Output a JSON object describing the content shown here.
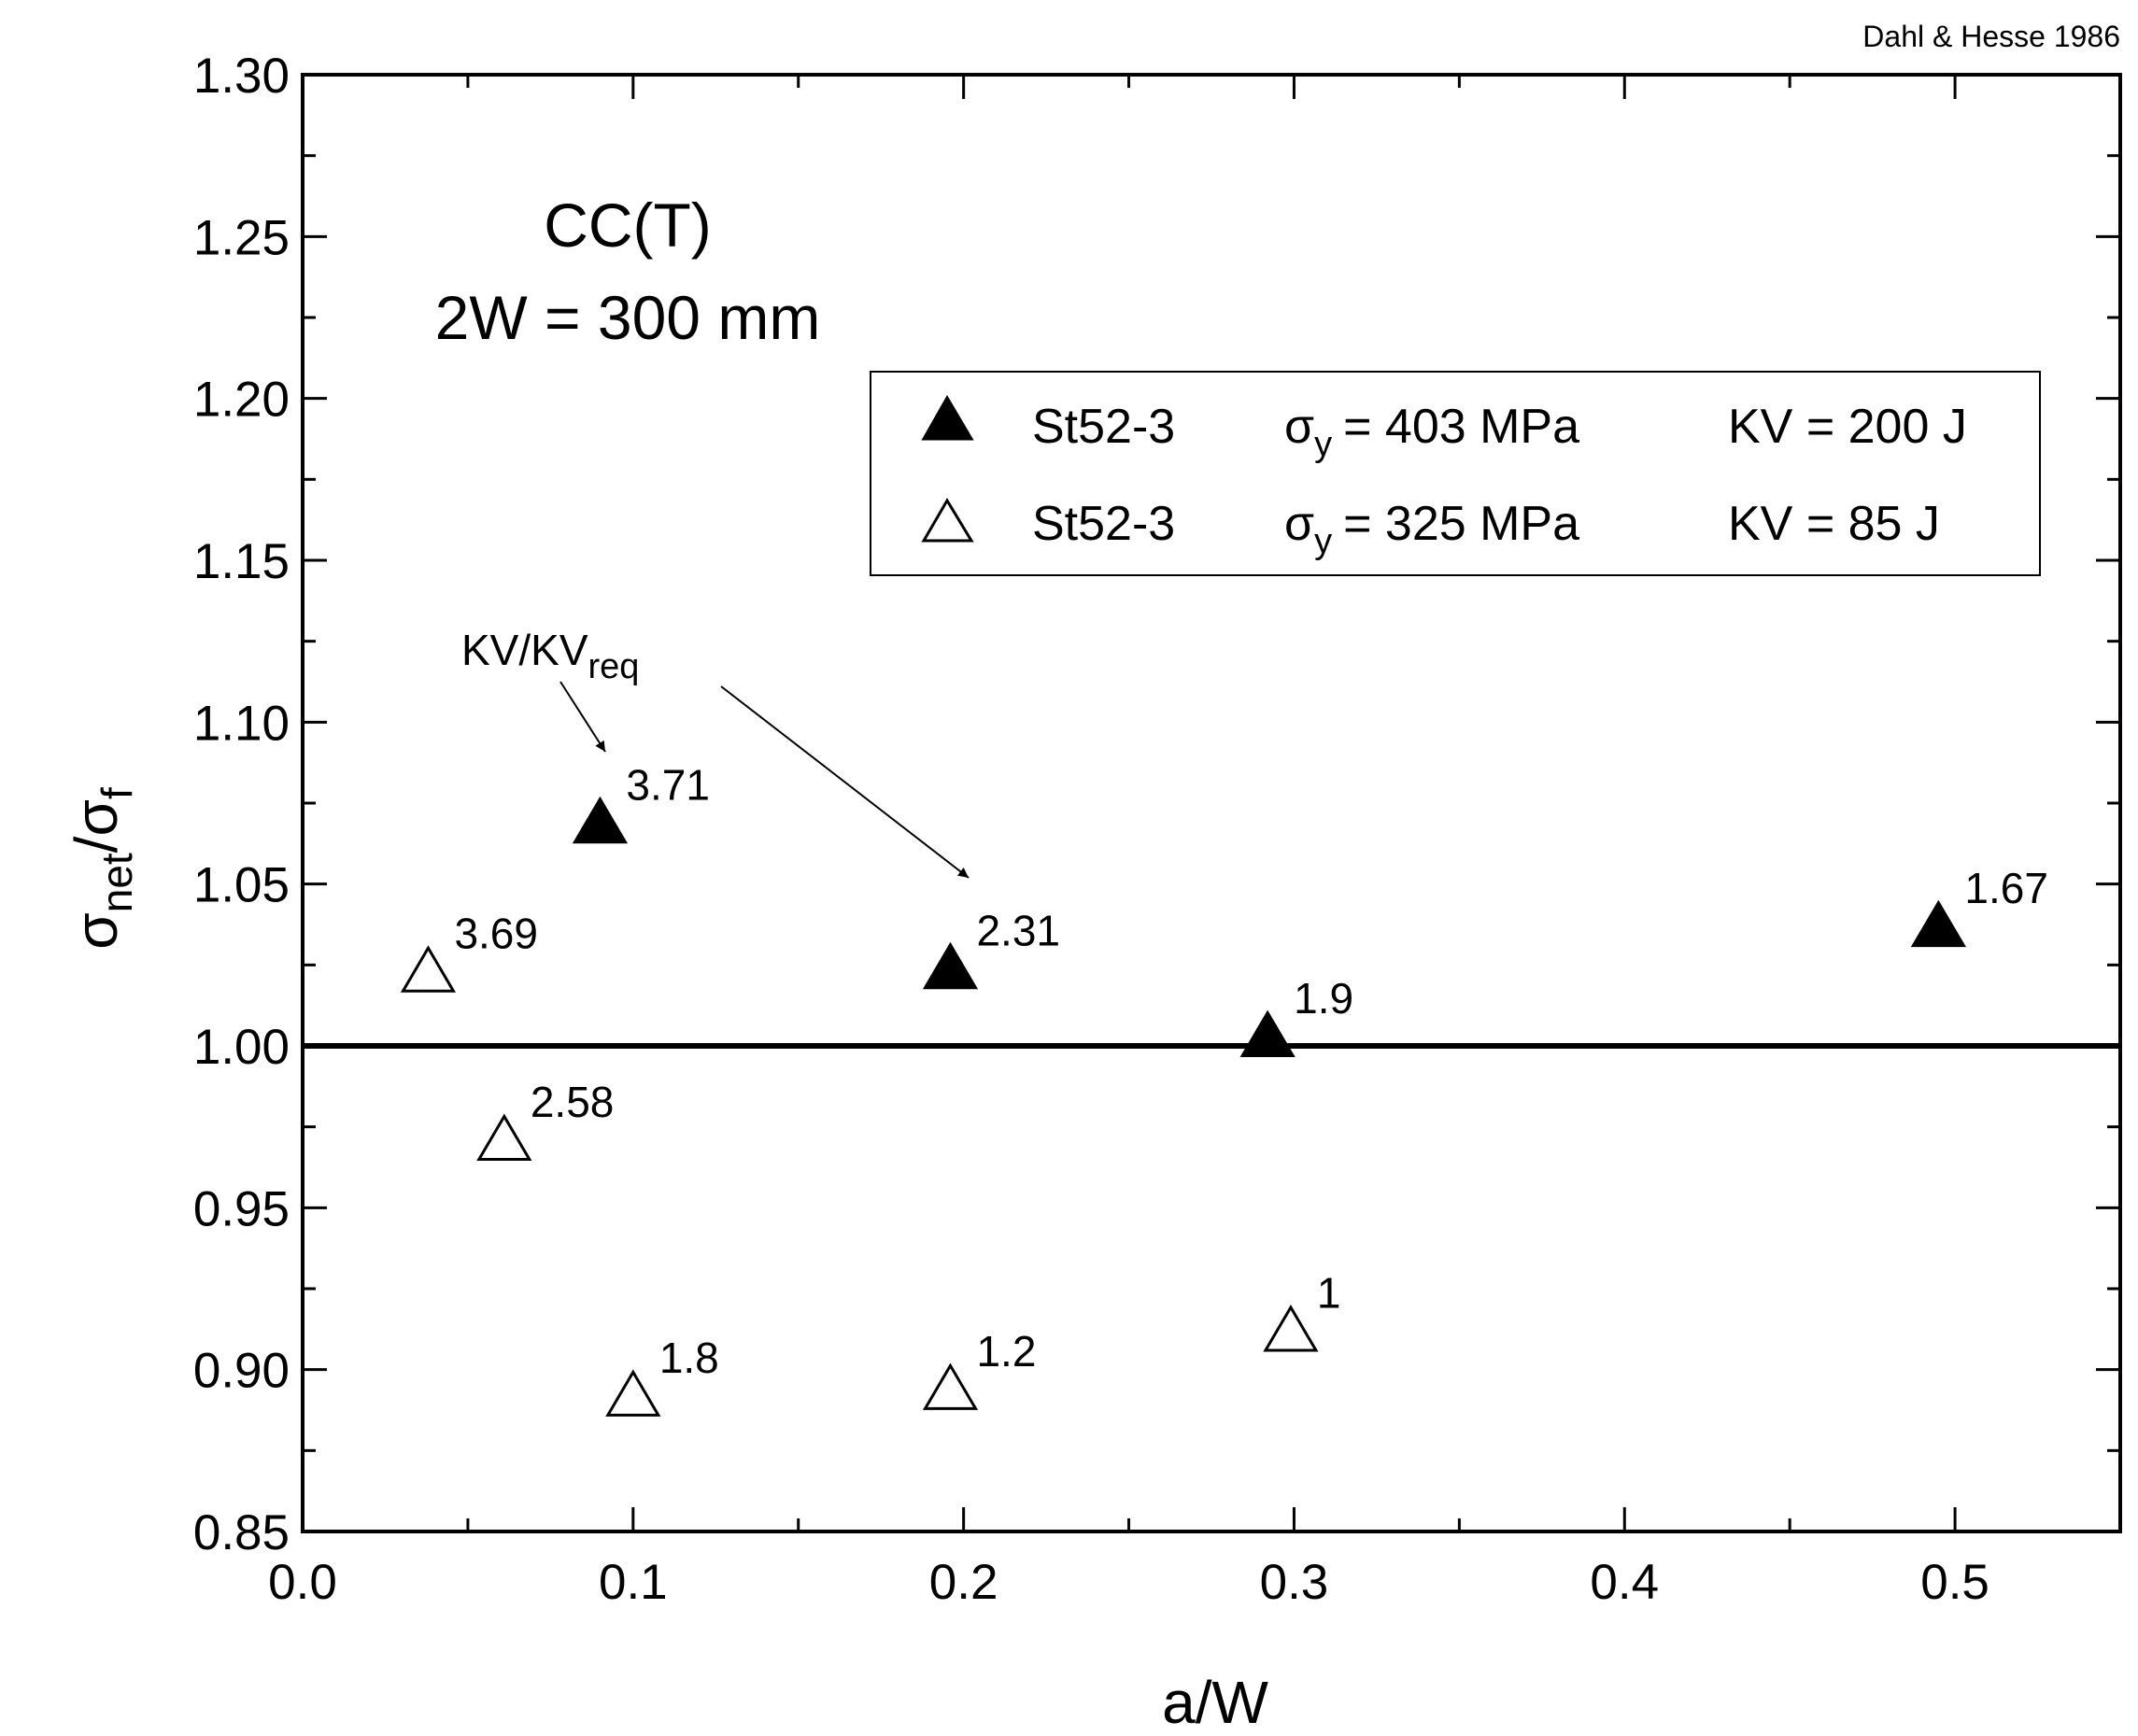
{
  "chart_data": {
    "type": "scatter",
    "credit": "Dahl & Hesse 1986",
    "xlabel": "a/W",
    "ylabel": {
      "main": "σ",
      "sub1": "net",
      "slash": "/σ",
      "sub2": "f"
    },
    "xlim": [
      0.0,
      0.55
    ],
    "ylim": [
      0.85,
      1.3
    ],
    "xticks": [
      0.0,
      0.1,
      0.2,
      0.3,
      0.4,
      0.5
    ],
    "xtick_labels": [
      "0.0",
      "0.1",
      "0.2",
      "0.3",
      "0.4",
      "0.5"
    ],
    "yticks": [
      0.85,
      0.9,
      0.95,
      1.0,
      1.05,
      1.1,
      1.15,
      1.2,
      1.25,
      1.3
    ],
    "ytick_labels": [
      "0.85",
      "0.90",
      "0.95",
      "1.00",
      "1.05",
      "1.10",
      "1.15",
      "1.20",
      "1.25",
      "1.30"
    ],
    "reference_line_y": 1.0,
    "specimen": {
      "line1": "CC(T)",
      "line2": "2W = 300 mm"
    },
    "series": [
      {
        "name": "St52-3 σy = 403 MPa KV = 200 J",
        "grade": "St52-3",
        "sigma_prefix": "σ",
        "sigma_sub": "y",
        "sigma_value": "= 403 MPa",
        "kv": "KV = 200 J",
        "marker": "filled-triangle",
        "color": "#000000",
        "points": [
          {
            "x": 0.09,
            "y": 1.068,
            "label": "3.71"
          },
          {
            "x": 0.196,
            "y": 1.023,
            "label": "2.31"
          },
          {
            "x": 0.292,
            "y": 1.002,
            "label": "1.9"
          },
          {
            "x": 0.495,
            "y": 1.036,
            "label": "1.67"
          }
        ]
      },
      {
        "name": "St52-3 σy = 325 MPa KV = 85 J",
        "grade": "St52-3",
        "sigma_prefix": "σ",
        "sigma_sub": "y",
        "sigma_value": "= 325 MPa",
        "kv": "KV = 85 J",
        "marker": "open-triangle",
        "color": "#000000",
        "points": [
          {
            "x": 0.038,
            "y": 1.022,
            "label": "3.69"
          },
          {
            "x": 0.061,
            "y": 0.97,
            "label": "2.58"
          },
          {
            "x": 0.1,
            "y": 0.891,
            "label": "1.8"
          },
          {
            "x": 0.196,
            "y": 0.893,
            "label": "1.2"
          },
          {
            "x": 0.299,
            "y": 0.911,
            "label": "1"
          }
        ]
      }
    ],
    "annotation": {
      "main": "KV/KV",
      "sub": "req"
    }
  }
}
